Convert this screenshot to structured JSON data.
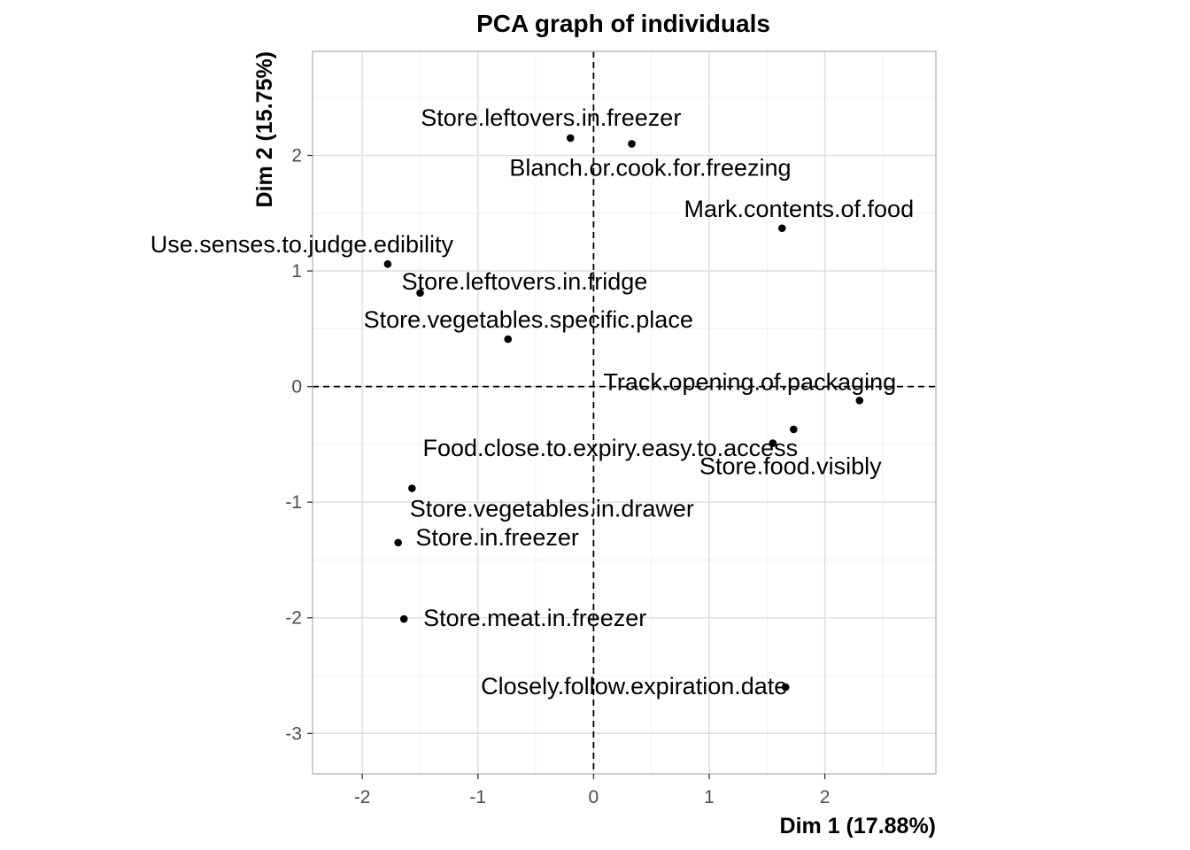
{
  "chart_data": {
    "type": "scatter",
    "title": "PCA graph of individuals",
    "xlabel": "Dim 1 (17.88%)",
    "ylabel": "Dim 2 (15.75%)",
    "xlim": [
      -2.43,
      2.96
    ],
    "ylim": [
      -3.35,
      2.9
    ],
    "xticks": [
      -2,
      -1,
      0,
      1,
      2
    ],
    "yticks": [
      -3,
      -2,
      -1,
      0,
      1,
      2
    ],
    "xtick_labels": [
      "-2",
      "-1",
      "0",
      "1",
      "2"
    ],
    "ytick_labels": [
      "-3",
      "-2",
      "-1",
      "0",
      "1",
      "2"
    ],
    "grid": true,
    "reference_lines": {
      "x": 0,
      "y": 0,
      "style": "dashed"
    },
    "points": [
      {
        "label": "Store.leftovers.in.freezer",
        "x": -0.2,
        "y": 2.15
      },
      {
        "label": "Blanch.or.cook.for.freezing",
        "x": 0.33,
        "y": 2.1
      },
      {
        "label": "Mark.contents.of.food",
        "x": 1.63,
        "y": 1.37
      },
      {
        "label": "Use.senses.to.judge.edibility",
        "x": -1.78,
        "y": 1.06
      },
      {
        "label": "Store.leftovers.in.fridge",
        "x": -1.5,
        "y": 0.81
      },
      {
        "label": "Store.vegetables.specific.place",
        "x": -0.74,
        "y": 0.41
      },
      {
        "label": "Track.opening.of.packaging",
        "x": 2.3,
        "y": -0.12
      },
      {
        "label": "Food.close.to.expiry.easy.to.access",
        "x": 1.73,
        "y": -0.37
      },
      {
        "label": "Store.food.visibly",
        "x": 1.55,
        "y": -0.49
      },
      {
        "label": "Store.vegetables.in.drawer",
        "x": -1.57,
        "y": -0.88
      },
      {
        "label": "Store.in.freezer",
        "x": -1.69,
        "y": -1.35
      },
      {
        "label": "Store.meat.in.freezer",
        "x": -1.64,
        "y": -2.01
      },
      {
        "label": "Closely.follow.expiration.date",
        "x": 1.66,
        "y": -2.6
      }
    ]
  }
}
